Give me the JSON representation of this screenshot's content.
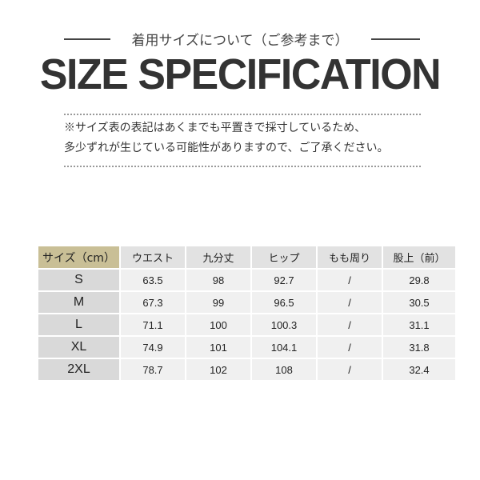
{
  "header": {
    "subtitle": "着用サイズについて（ご参考まで）",
    "title": "SIZE SPECIFICATION"
  },
  "notes": [
    "※サイズ表の表記はあくまでも平置きで採寸しているため、",
    "多少ずれが生じている可能性がありますので、ご了承ください。"
  ],
  "table": {
    "columns": [
      "サイズ（cm）",
      "ウエスト",
      "九分丈",
      "ヒップ",
      "もも周り",
      "股上（前）"
    ],
    "rows": [
      [
        "S",
        "63.5",
        "98",
        "92.7",
        "/",
        "29.8"
      ],
      [
        "M",
        "67.3",
        "99",
        "96.5",
        "/",
        "30.5"
      ],
      [
        "L",
        "71.1",
        "100",
        "100.3",
        "/",
        "31.1"
      ],
      [
        "XL",
        "74.9",
        "101",
        "104.1",
        "/",
        "31.8"
      ],
      [
        "2XL",
        "78.7",
        "102",
        "108",
        "/",
        "32.4"
      ]
    ]
  },
  "colors": {
    "header_accent": "#c9bf96",
    "header_bg": "#e2e2e2",
    "size_col_bg": "#d9d9d9",
    "cell_bg": "#f0f0f0",
    "text": "#333333"
  }
}
